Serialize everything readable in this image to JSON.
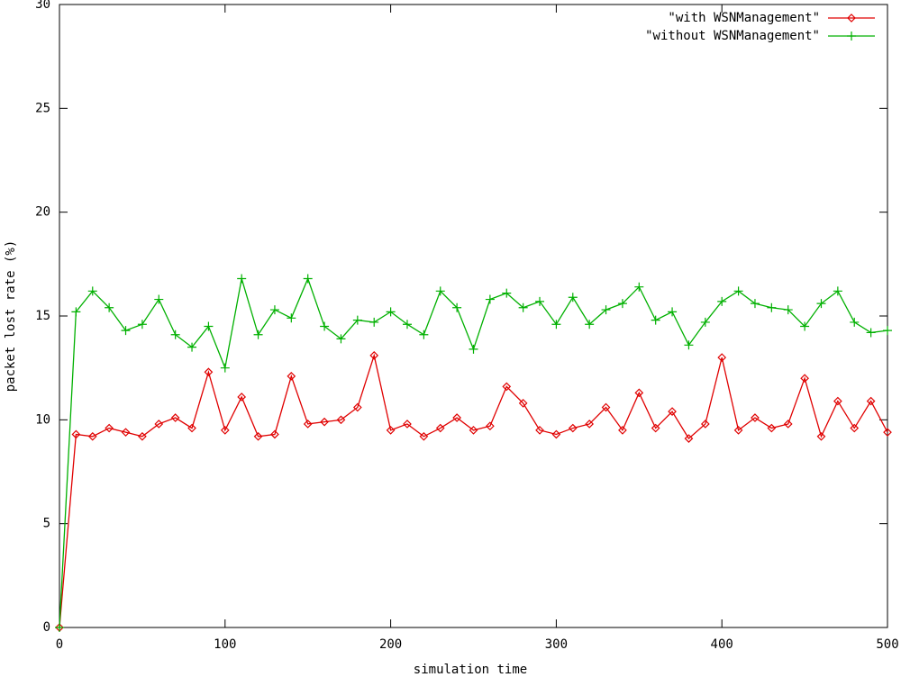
{
  "chart_data": {
    "type": "line",
    "x_label": "simulation time",
    "y_label": "packet lost rate (%)",
    "x": [
      0,
      10,
      20,
      30,
      40,
      50,
      60,
      70,
      80,
      90,
      100,
      110,
      120,
      130,
      140,
      150,
      160,
      170,
      180,
      190,
      200,
      210,
      220,
      230,
      240,
      250,
      260,
      270,
      280,
      290,
      300,
      310,
      320,
      330,
      340,
      350,
      360,
      370,
      380,
      390,
      400,
      410,
      420,
      430,
      440,
      450,
      460,
      470,
      480,
      490,
      500
    ],
    "series": [
      {
        "name": "\"with WSNManagement\"",
        "color": "#e00000",
        "marker": "diamond",
        "values": [
          0,
          9.3,
          9.2,
          9.6,
          9.4,
          9.2,
          9.8,
          10.1,
          9.6,
          12.3,
          9.5,
          11.1,
          9.2,
          9.3,
          12.1,
          9.8,
          9.9,
          10.0,
          10.6,
          13.1,
          9.5,
          9.8,
          9.2,
          9.6,
          10.1,
          9.5,
          9.7,
          11.6,
          10.8,
          9.5,
          9.3,
          9.6,
          9.8,
          10.6,
          9.5,
          11.3,
          9.6,
          10.4,
          9.1,
          9.8,
          13.0,
          9.5,
          10.1,
          9.6,
          9.8,
          12.0,
          9.2,
          10.9,
          9.6,
          10.9,
          9.4
        ]
      },
      {
        "name": "\"without WSNManagement\"",
        "color": "#00b000",
        "marker": "plus",
        "values": [
          0,
          15.2,
          16.2,
          15.4,
          14.3,
          14.6,
          15.8,
          14.1,
          13.5,
          14.5,
          12.5,
          16.8,
          14.1,
          15.3,
          14.9,
          16.8,
          14.5,
          13.9,
          14.8,
          14.7,
          15.2,
          14.6,
          14.1,
          16.2,
          15.4,
          13.4,
          15.8,
          16.1,
          15.4,
          15.7,
          14.6,
          15.9,
          14.6,
          15.3,
          15.6,
          16.4,
          14.8,
          15.2,
          13.6,
          14.7,
          15.7,
          16.2,
          15.6,
          15.4,
          15.3,
          14.5,
          15.6,
          16.2,
          14.7,
          14.2,
          14.3
        ]
      }
    ],
    "xlim": [
      0,
      500
    ],
    "xticks": [
      0,
      100,
      200,
      300,
      400,
      500
    ],
    "ylim": [
      0,
      30
    ],
    "yticks": [
      0,
      5,
      10,
      15,
      20,
      25,
      30
    ],
    "legend": "top-right"
  }
}
